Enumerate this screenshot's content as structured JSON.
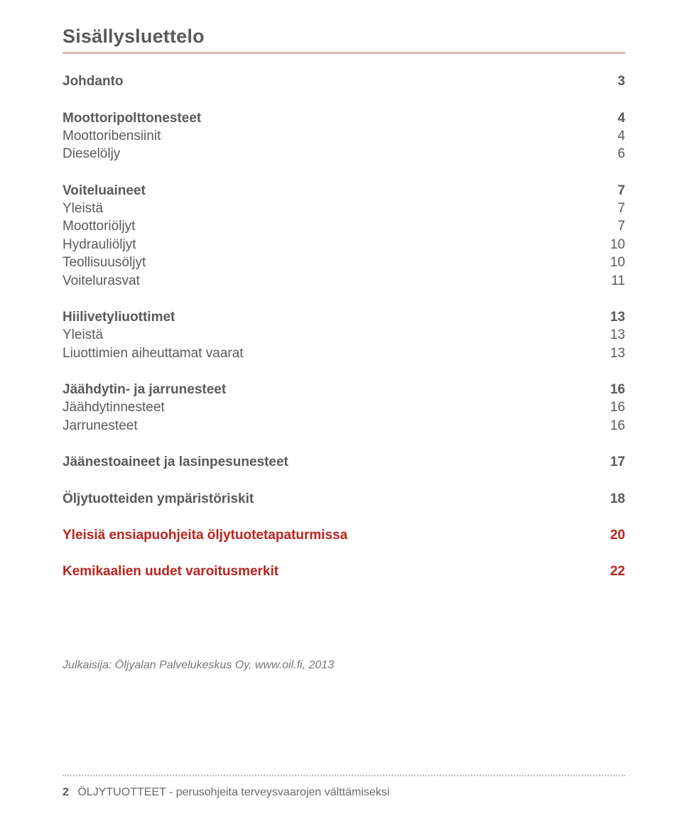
{
  "title": "Sisällysluettelo",
  "colors": {
    "text": "#5a5a5a",
    "accent": "#ba2420",
    "title_underline": "#d9b9b3",
    "divider": "#bdbdbd",
    "publisher_text": "#777777",
    "background": "#ffffff"
  },
  "toc": {
    "items": [
      {
        "label": "Johdanto",
        "page": "3",
        "style": "bold"
      },
      {
        "spacer": "md"
      },
      {
        "label": "Moottoripolttonesteet",
        "page": "4",
        "style": "bold"
      },
      {
        "label": "Moottoribensiinit",
        "page": "4",
        "style": "normal"
      },
      {
        "label": "Dieselöljy",
        "page": "6",
        "style": "normal"
      },
      {
        "spacer": "md"
      },
      {
        "label": "Voiteluaineet",
        "page": "7",
        "style": "bold"
      },
      {
        "label": "Yleistä",
        "page": "7",
        "style": "normal"
      },
      {
        "label": "Moottoriöljyt",
        "page": "7",
        "style": "normal"
      },
      {
        "label": "Hydrauliöljyt",
        "page": "10",
        "style": "normal"
      },
      {
        "label": "Teollisuusöljyt",
        "page": "10",
        "style": "normal"
      },
      {
        "label": "Voitelurasvat",
        "page": "11",
        "style": "normal"
      },
      {
        "spacer": "md"
      },
      {
        "label": "Hiilivetyliuottimet",
        "page": "13",
        "style": "bold"
      },
      {
        "label": "Yleistä",
        "page": "13",
        "style": "normal"
      },
      {
        "label": "Liuottimien aiheuttamat vaarat",
        "page": "13",
        "style": "normal"
      },
      {
        "spacer": "md"
      },
      {
        "label": "Jäähdytin- ja jarrunesteet",
        "page": "16",
        "style": "bold"
      },
      {
        "label": "Jäähdytinnesteet",
        "page": "16",
        "style": "normal"
      },
      {
        "label": "Jarrunesteet",
        "page": "16",
        "style": "normal"
      },
      {
        "spacer": "md"
      },
      {
        "label": "Jäänestoaineet ja lasinpesunesteet",
        "page": "17",
        "style": "bold"
      },
      {
        "spacer": "md"
      },
      {
        "label": "Öljytuotteiden ympäristöriskit",
        "page": "18",
        "style": "bold"
      },
      {
        "spacer": "md"
      },
      {
        "label": "Yleisiä ensiapuohjeita öljytuotetapaturmissa",
        "page": "20",
        "style": "accent"
      },
      {
        "spacer": "md"
      },
      {
        "label": "Kemikaalien uudet varoitusmerkit",
        "page": "22",
        "style": "accent"
      }
    ]
  },
  "publisher": "Julkaisija: Öljyalan Palvelukeskus Oy, www.oil.fi, 2013",
  "footer": {
    "page_number": "2",
    "text": "ÖLJYTUOTTEET - perusohjeita terveysvaarojen välttämiseksi"
  }
}
